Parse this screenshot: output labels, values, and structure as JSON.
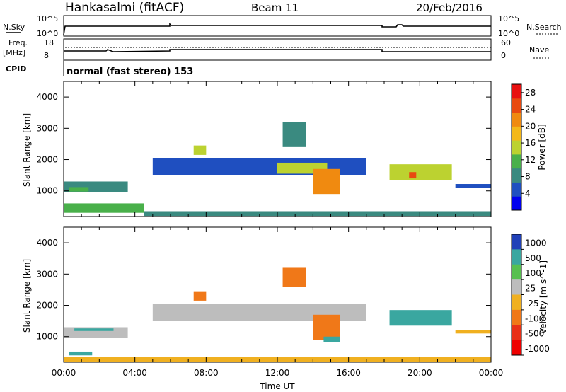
{
  "header": {
    "station": "Hankasalmi (fitACF)",
    "beam": "Beam 11",
    "date": "20/Feb/2016"
  },
  "status": {
    "nsky_label": "N.Sky",
    "nsearch_label": "N.Search",
    "freq_label_1": "Freq.",
    "freq_label_2": "[MHz]",
    "nave_label": "Nave",
    "cpid_label": "CPID",
    "cpid_value": "normal (fast stereo) 153",
    "noise_ticks_left": [
      "10^5",
      "10^0"
    ],
    "noise_ticks_right": [
      "10^5",
      "10^0"
    ],
    "freq_ticks": [
      "18",
      "8"
    ],
    "nave_ticks": [
      "60",
      "0"
    ]
  },
  "colors": {
    "power": [
      "#0000ee",
      "#1f4fc0",
      "#3a8a80",
      "#49b04a",
      "#bcd230",
      "#f4b81a",
      "#f08a10",
      "#e84a10",
      "#e81010"
    ],
    "velocity": [
      "#2040b8",
      "#3aa7a0",
      "#58c050",
      "#bdbdbd",
      "#f0b020",
      "#f07818",
      "#e83018",
      "#ee0000"
    ]
  },
  "chart_data": [
    {
      "type": "heatmap",
      "name": "power",
      "xlabel": "",
      "ylabel": "Slant Range [km]",
      "xlim": [
        0,
        24
      ],
      "ylim": [
        180,
        4500
      ],
      "y_ticks": [
        "1000",
        "2000",
        "3000",
        "4000"
      ],
      "colorbar_label": "Power [dB]",
      "colorbar_ticks": [
        "4",
        "8",
        "12",
        "16",
        "20",
        "24",
        "28"
      ],
      "colorbar_range": [
        0,
        30
      ],
      "regions": [
        {
          "t0": 0.0,
          "t1": 3.6,
          "r0": 950,
          "r1": 1300,
          "value": 9
        },
        {
          "t0": 0.3,
          "t1": 1.4,
          "r0": 980,
          "r1": 1120,
          "value": 13
        },
        {
          "t0": 7.3,
          "t1": 8.0,
          "r0": 2150,
          "r1": 2450,
          "value": 14
        },
        {
          "t0": 5.0,
          "t1": 17.0,
          "r0": 1500,
          "r1": 2050,
          "value": 6
        },
        {
          "t0": 12.0,
          "t1": 14.8,
          "r0": 1550,
          "r1": 1900,
          "value": 14
        },
        {
          "t0": 14.0,
          "t1": 15.5,
          "r0": 900,
          "r1": 1700,
          "value": 22
        },
        {
          "t0": 12.3,
          "t1": 13.6,
          "r0": 2400,
          "r1": 3200,
          "value": 7
        },
        {
          "t0": 18.3,
          "t1": 21.8,
          "r0": 1350,
          "r1": 1850,
          "value": 15
        },
        {
          "t0": 19.4,
          "t1": 19.8,
          "r0": 1400,
          "r1": 1600,
          "value": 26
        },
        {
          "t0": 22.0,
          "t1": 24.0,
          "r0": 1100,
          "r1": 1220,
          "value": 5
        },
        {
          "t0": 0.0,
          "t1": 4.5,
          "r0": 300,
          "r1": 600,
          "value": 10
        },
        {
          "t0": 4.5,
          "t1": 24.0,
          "r0": 200,
          "r1": 350,
          "value": 8
        }
      ]
    },
    {
      "type": "heatmap",
      "name": "velocity",
      "xlabel": "Time UT",
      "ylabel": "Slant Range [km]",
      "xlim": [
        0,
        24
      ],
      "ylim": [
        180,
        4500
      ],
      "x_ticks": [
        "00:00",
        "04:00",
        "08:00",
        "12:00",
        "16:00",
        "20:00",
        "00:00"
      ],
      "y_ticks": [
        "1000",
        "2000",
        "3000",
        "4000"
      ],
      "colorbar_label": "Velocity [m s^-1]",
      "colorbar_ticks": [
        "1000",
        "500",
        "100",
        "25",
        "-25",
        "-100",
        "-500",
        "-1000"
      ],
      "regions": [
        {
          "t0": 0.0,
          "t1": 3.6,
          "r0": 950,
          "r1": 1300,
          "value": 0
        },
        {
          "t0": 0.6,
          "t1": 2.8,
          "r0": 1180,
          "r1": 1260,
          "value": 150
        },
        {
          "t0": 7.3,
          "t1": 8.0,
          "r0": 2150,
          "r1": 2450,
          "value": -400
        },
        {
          "t0": 5.0,
          "t1": 17.0,
          "r0": 1500,
          "r1": 2050,
          "value": 0
        },
        {
          "t0": 14.0,
          "t1": 15.5,
          "r0": 900,
          "r1": 1700,
          "value": -300
        },
        {
          "t0": 14.6,
          "t1": 15.5,
          "r0": 820,
          "r1": 1000,
          "value": 120
        },
        {
          "t0": 12.3,
          "t1": 13.6,
          "r0": 2600,
          "r1": 3200,
          "value": -150
        },
        {
          "t0": 18.3,
          "t1": 21.8,
          "r0": 1350,
          "r1": 1850,
          "value": 300
        },
        {
          "t0": 22.0,
          "t1": 24.0,
          "r0": 1100,
          "r1": 1220,
          "value": -60
        },
        {
          "t0": 0.3,
          "t1": 1.6,
          "r0": 400,
          "r1": 520,
          "value": 180
        },
        {
          "t0": 0.0,
          "t1": 24.0,
          "r0": 200,
          "r1": 350,
          "value": -80
        }
      ]
    }
  ]
}
